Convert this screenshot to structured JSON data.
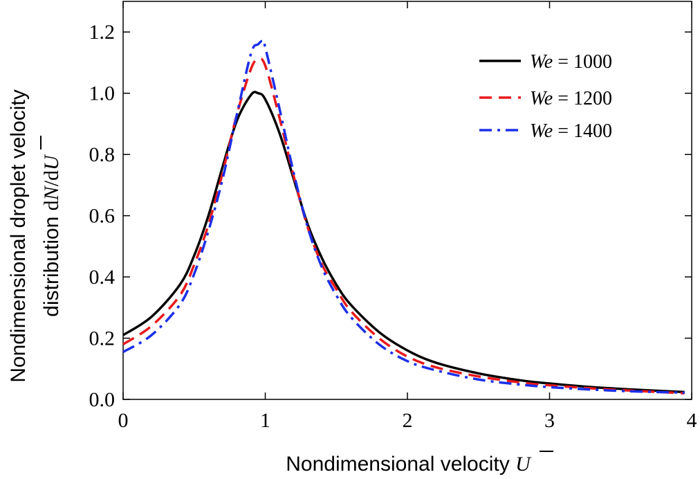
{
  "chart_data": {
    "type": "line",
    "title": "",
    "xlabel": "Nondimensional velocity",
    "xlabel_symbol": "U",
    "ylabel_line1": "Nondimensional droplet velocity",
    "ylabel_line2": "distribution",
    "ylabel_symbol_d1": "d",
    "ylabel_symbol_N": "N",
    "ylabel_symbol_d2": "/d",
    "ylabel_symbol_U": "U",
    "xlim": [
      0,
      4
    ],
    "ylim": [
      0,
      1.3
    ],
    "xticks": [
      0,
      1,
      2,
      3,
      4
    ],
    "xtick_labels": [
      "0",
      "1",
      "2",
      "3",
      "4"
    ],
    "yticks": [
      0,
      0.2,
      0.4,
      0.6,
      0.8,
      1.0,
      1.2
    ],
    "ytick_labels": [
      "0.0",
      "0.2",
      "0.4",
      "0.6",
      "0.8",
      "1.0",
      "1.2"
    ],
    "grid": false,
    "legend_position": "top-right",
    "series": [
      {
        "name_prefix": "We",
        "name_value": " = 1000",
        "color": "#000000",
        "style": "solid",
        "x": [
          0,
          0.2,
          0.4,
          0.5,
          0.6,
          0.7,
          0.8,
          0.9,
          0.95,
          1.0,
          1.1,
          1.2,
          1.3,
          1.4,
          1.5,
          1.6,
          1.8,
          2.0,
          2.2,
          2.5,
          2.8,
          3.0,
          3.3,
          3.6,
          3.95
        ],
        "y": [
          0.21,
          0.27,
          0.375,
          0.47,
          0.6,
          0.76,
          0.91,
          0.995,
          1.0,
          0.98,
          0.87,
          0.72,
          0.57,
          0.46,
          0.375,
          0.31,
          0.22,
          0.16,
          0.12,
          0.085,
          0.062,
          0.052,
          0.04,
          0.032,
          0.024
        ]
      },
      {
        "name_prefix": "We",
        "name_value": " = 1200",
        "color": "#e8191c",
        "style": "dashed",
        "x": [
          0,
          0.2,
          0.4,
          0.5,
          0.6,
          0.7,
          0.8,
          0.9,
          0.95,
          1.0,
          1.1,
          1.2,
          1.3,
          1.4,
          1.5,
          1.6,
          1.8,
          2.0,
          2.2,
          2.5,
          2.8,
          3.0,
          3.3,
          3.6,
          3.95
        ],
        "y": [
          0.18,
          0.24,
          0.34,
          0.44,
          0.57,
          0.74,
          0.93,
          1.08,
          1.11,
          1.09,
          0.92,
          0.73,
          0.56,
          0.44,
          0.36,
          0.29,
          0.2,
          0.14,
          0.105,
          0.075,
          0.055,
          0.046,
          0.036,
          0.028,
          0.02
        ]
      },
      {
        "name_prefix": "We",
        "name_value": " = 1400",
        "color": "#1c2fe8",
        "style": "dashdot",
        "x": [
          0,
          0.2,
          0.4,
          0.5,
          0.6,
          0.7,
          0.8,
          0.9,
          0.95,
          0.98,
          1.0,
          1.1,
          1.2,
          1.3,
          1.4,
          1.5,
          1.6,
          1.8,
          2.0,
          2.2,
          2.5,
          2.8,
          3.0,
          3.3,
          3.6,
          3.95
        ],
        "y": [
          0.155,
          0.21,
          0.31,
          0.41,
          0.55,
          0.72,
          0.93,
          1.13,
          1.16,
          1.17,
          1.15,
          0.95,
          0.74,
          0.56,
          0.43,
          0.34,
          0.27,
          0.18,
          0.125,
          0.095,
          0.065,
          0.048,
          0.04,
          0.032,
          0.026,
          0.022
        ]
      }
    ]
  }
}
